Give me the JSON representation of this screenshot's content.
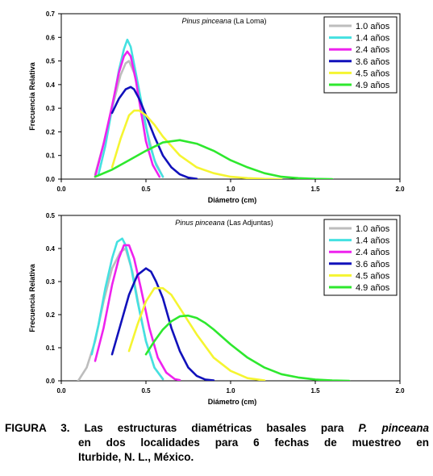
{
  "chart_data": [
    {
      "type": "line",
      "title_species": "Pinus pinceana",
      "title_place": " (La Loma)",
      "xlabel": "Diámetro (cm)",
      "ylabel": "Frecuencia Relativa",
      "xlim": [
        0,
        2
      ],
      "ylim": [
        0,
        0.7
      ],
      "x_ticks": [
        "0.0",
        "0.5",
        "1.0",
        "1.5",
        "2.0"
      ],
      "y_ticks": [
        "0.0",
        "0.1",
        "0.2",
        "0.3",
        "0.4",
        "0.5",
        "0.6",
        "0.7"
      ],
      "legend_position": "top-right",
      "series": [
        {
          "name": "1.0 años",
          "color": "#bdbdbd",
          "x": [
            0.2,
            0.25,
            0.3,
            0.35,
            0.38,
            0.4,
            0.43,
            0.46,
            0.5,
            0.55,
            0.6
          ],
          "y": [
            0.02,
            0.15,
            0.3,
            0.44,
            0.49,
            0.5,
            0.45,
            0.36,
            0.22,
            0.08,
            0.01
          ]
        },
        {
          "name": "1.4 años",
          "color": "#44e1e1",
          "x": [
            0.22,
            0.26,
            0.3,
            0.34,
            0.37,
            0.39,
            0.41,
            0.44,
            0.48,
            0.52,
            0.56,
            0.6
          ],
          "y": [
            0.02,
            0.14,
            0.3,
            0.46,
            0.55,
            0.59,
            0.56,
            0.45,
            0.3,
            0.15,
            0.06,
            0.01
          ]
        },
        {
          "name": "2.4 años",
          "color": "#ee22ee",
          "x": [
            0.2,
            0.25,
            0.3,
            0.34,
            0.37,
            0.39,
            0.41,
            0.44,
            0.47,
            0.5,
            0.54,
            0.58
          ],
          "y": [
            0.01,
            0.15,
            0.31,
            0.45,
            0.52,
            0.54,
            0.52,
            0.42,
            0.29,
            0.16,
            0.06,
            0.01
          ]
        },
        {
          "name": "3.6 años",
          "color": "#1111bb",
          "x": [
            0.3,
            0.34,
            0.38,
            0.41,
            0.43,
            0.46,
            0.5,
            0.55,
            0.6,
            0.65,
            0.7,
            0.75,
            0.8
          ],
          "y": [
            0.28,
            0.34,
            0.38,
            0.39,
            0.38,
            0.34,
            0.27,
            0.18,
            0.1,
            0.05,
            0.02,
            0.006,
            0.001
          ]
        },
        {
          "name": "4.5 años",
          "color": "#f5f531",
          "x": [
            0.3,
            0.35,
            0.4,
            0.43,
            0.46,
            0.5,
            0.55,
            0.6,
            0.7,
            0.8,
            0.9,
            1.0,
            1.1,
            1.2,
            1.3
          ],
          "y": [
            0.05,
            0.17,
            0.27,
            0.29,
            0.29,
            0.27,
            0.23,
            0.18,
            0.1,
            0.05,
            0.025,
            0.01,
            0.004,
            0.001,
            0.0
          ]
        },
        {
          "name": "4.9 años",
          "color": "#2ee82e",
          "x": [
            0.2,
            0.3,
            0.4,
            0.5,
            0.6,
            0.7,
            0.8,
            0.9,
            1.0,
            1.1,
            1.2,
            1.3,
            1.4,
            1.5,
            1.6
          ],
          "y": [
            0.01,
            0.04,
            0.08,
            0.12,
            0.155,
            0.165,
            0.15,
            0.12,
            0.08,
            0.05,
            0.025,
            0.01,
            0.004,
            0.001,
            0.0
          ]
        }
      ]
    },
    {
      "type": "line",
      "title_species": "Pinus pinceana",
      "title_place": " (Las Adjuntas)",
      "xlabel": "Diámetro (cm)",
      "ylabel": "Frecuencia Relativa",
      "xlim": [
        0,
        2
      ],
      "ylim": [
        0,
        0.5
      ],
      "x_ticks": [
        "0.0",
        "0.5",
        "1.0",
        "1.5",
        "2.0"
      ],
      "y_ticks": [
        "0.0",
        "0.1",
        "0.2",
        "0.3",
        "0.4",
        "0.5"
      ],
      "legend_position": "top-right",
      "series": [
        {
          "name": "1.0 años",
          "color": "#bdbdbd",
          "x": [
            0.1,
            0.15,
            0.2,
            0.25,
            0.3,
            0.35,
            0.38,
            0.42,
            0.46,
            0.5,
            0.55,
            0.6
          ],
          "y": [
            0.0,
            0.04,
            0.12,
            0.24,
            0.34,
            0.39,
            0.4,
            0.33,
            0.22,
            0.12,
            0.04,
            0.005
          ]
        },
        {
          "name": "1.4 años",
          "color": "#44e1e1",
          "x": [
            0.18,
            0.22,
            0.26,
            0.3,
            0.33,
            0.36,
            0.38,
            0.41,
            0.45,
            0.5,
            0.55,
            0.6
          ],
          "y": [
            0.08,
            0.17,
            0.28,
            0.37,
            0.42,
            0.43,
            0.41,
            0.35,
            0.24,
            0.12,
            0.04,
            0.005
          ]
        },
        {
          "name": "2.4 años",
          "color": "#ee22ee",
          "x": [
            0.2,
            0.25,
            0.3,
            0.34,
            0.37,
            0.4,
            0.43,
            0.47,
            0.52,
            0.57,
            0.62,
            0.67,
            0.7
          ],
          "y": [
            0.06,
            0.16,
            0.29,
            0.37,
            0.41,
            0.41,
            0.37,
            0.28,
            0.16,
            0.07,
            0.025,
            0.005,
            0.002
          ]
        },
        {
          "name": "3.6 años",
          "color": "#1111bb",
          "x": [
            0.3,
            0.35,
            0.4,
            0.45,
            0.5,
            0.53,
            0.56,
            0.6,
            0.65,
            0.7,
            0.75,
            0.8,
            0.85,
            0.9
          ],
          "y": [
            0.08,
            0.17,
            0.26,
            0.32,
            0.34,
            0.33,
            0.3,
            0.25,
            0.16,
            0.09,
            0.04,
            0.015,
            0.004,
            0.001
          ]
        },
        {
          "name": "4.5 años",
          "color": "#f5f531",
          "x": [
            0.4,
            0.45,
            0.5,
            0.55,
            0.6,
            0.65,
            0.7,
            0.8,
            0.9,
            1.0,
            1.1,
            1.2
          ],
          "y": [
            0.09,
            0.17,
            0.24,
            0.28,
            0.28,
            0.26,
            0.22,
            0.14,
            0.07,
            0.03,
            0.008,
            0.001
          ]
        },
        {
          "name": "4.9 años",
          "color": "#2ee82e",
          "x": [
            0.5,
            0.55,
            0.6,
            0.65,
            0.7,
            0.75,
            0.8,
            0.85,
            0.9,
            1.0,
            1.1,
            1.2,
            1.3,
            1.4,
            1.5,
            1.6,
            1.7
          ],
          "y": [
            0.08,
            0.12,
            0.155,
            0.18,
            0.195,
            0.197,
            0.19,
            0.175,
            0.155,
            0.11,
            0.07,
            0.04,
            0.02,
            0.01,
            0.004,
            0.001,
            0.0
          ]
        }
      ]
    }
  ],
  "caption": {
    "label": "FIGURA 3.",
    "text_before_italic": " Las estructuras diamétricas basales para ",
    "italic": "P. pinceana",
    "line2": "en dos localidades para 6 fechas de muestreo en",
    "line3": "Iturbide, N. L., México."
  }
}
